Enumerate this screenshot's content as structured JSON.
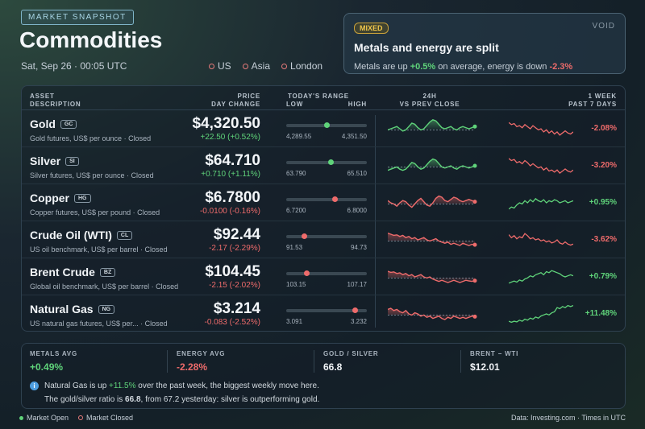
{
  "header": {
    "tag": "MARKET SNAPSHOT",
    "title": "Commodities",
    "datetime": "Sat, Sep 26 · 00:05 UTC",
    "markets": [
      "US",
      "Asia",
      "London"
    ]
  },
  "callout": {
    "badge": "MIXED",
    "brand": "VOID",
    "headline": "Metals and energy are split",
    "body_prefix": "Metals are up ",
    "metals_change": "+0.5%",
    "body_mid": " on average, energy is down ",
    "energy_change": "-2.3%"
  },
  "table": {
    "headers": {
      "asset": "ASSET",
      "description": "DESCRIPTION",
      "price": "PRICE",
      "day_change": "DAY CHANGE",
      "range": "TODAY'S RANGE",
      "low": "LOW",
      "high": "HIGH",
      "h24": "24H",
      "vs_prev": "VS PREV CLOSE",
      "week": "1 WEEK",
      "past7": "PAST 7 DAYS"
    },
    "rows": [
      {
        "name": "Gold",
        "code": "GC",
        "desc": "Gold futures, US$ per ounce · Closed",
        "price": "$4,320.50",
        "change": "+22.50 (+0.52%)",
        "dir": "up",
        "low": "4,289.55",
        "high": "4,351.50",
        "range_pos": 0.5,
        "week": "-2.08%",
        "week_dir": "down",
        "spark24": [
          0.45,
          0.5,
          0.55,
          0.6,
          0.5,
          0.4,
          0.45,
          0.6,
          0.75,
          0.7,
          0.55,
          0.45,
          0.5,
          0.65,
          0.8,
          0.9,
          0.85,
          0.7,
          0.55,
          0.5,
          0.55,
          0.6,
          0.5,
          0.45,
          0.55,
          0.6,
          0.55,
          0.5,
          0.55,
          0.6
        ],
        "spark7": [
          0.8,
          0.7,
          0.75,
          0.6,
          0.65,
          0.55,
          0.7,
          0.6,
          0.5,
          0.65,
          0.55,
          0.45,
          0.5,
          0.35,
          0.45,
          0.3,
          0.4,
          0.25,
          0.35,
          0.2,
          0.3,
          0.4,
          0.3,
          0.25,
          0.35
        ]
      },
      {
        "name": "Silver",
        "code": "SI",
        "desc": "Silver futures, US$ per ounce · Closed",
        "price": "$64.710",
        "change": "+0.710 (+1.11%)",
        "dir": "up",
        "low": "63.790",
        "high": "65.510",
        "range_pos": 0.55,
        "week": "-3.20%",
        "week_dir": "down",
        "spark24": [
          0.3,
          0.35,
          0.4,
          0.45,
          0.35,
          0.3,
          0.35,
          0.5,
          0.65,
          0.6,
          0.45,
          0.35,
          0.4,
          0.55,
          0.7,
          0.8,
          0.75,
          0.6,
          0.45,
          0.4,
          0.45,
          0.5,
          0.4,
          0.35,
          0.45,
          0.5,
          0.45,
          0.4,
          0.45,
          0.5
        ],
        "spark7": [
          0.85,
          0.75,
          0.8,
          0.65,
          0.7,
          0.6,
          0.75,
          0.65,
          0.5,
          0.6,
          0.5,
          0.4,
          0.45,
          0.3,
          0.4,
          0.25,
          0.3,
          0.2,
          0.3,
          0.15,
          0.25,
          0.35,
          0.25,
          0.2,
          0.3
        ]
      },
      {
        "name": "Copper",
        "code": "HG",
        "desc": "Copper futures, US$ per pound · Closed",
        "price": "$6.7800",
        "change": "-0.0100 (-0.16%)",
        "dir": "down",
        "low": "6.7200",
        "high": "6.8000",
        "range_pos": 0.6,
        "week": "+0.95%",
        "week_dir": "up",
        "spark24": [
          0.6,
          0.5,
          0.45,
          0.35,
          0.5,
          0.6,
          0.55,
          0.4,
          0.3,
          0.45,
          0.6,
          0.7,
          0.55,
          0.4,
          0.35,
          0.5,
          0.7,
          0.8,
          0.75,
          0.6,
          0.55,
          0.65,
          0.75,
          0.7,
          0.6,
          0.55,
          0.6,
          0.65,
          0.6,
          0.55
        ],
        "spark7": [
          0.2,
          0.3,
          0.25,
          0.4,
          0.5,
          0.45,
          0.6,
          0.5,
          0.65,
          0.55,
          0.7,
          0.6,
          0.55,
          0.65,
          0.5,
          0.6,
          0.55,
          0.65,
          0.6,
          0.5,
          0.55,
          0.6,
          0.5,
          0.55,
          0.6
        ]
      },
      {
        "name": "Crude Oil (WTI)",
        "code": "CL",
        "desc": "US oil benchmark, US$ per barrel · Closed",
        "price": "$92.44",
        "change": "-2.17 (-2.29%)",
        "dir": "down",
        "low": "91.53",
        "high": "94.73",
        "range_pos": 0.22,
        "week": "-3.62%",
        "week_dir": "down",
        "spark24": [
          0.8,
          0.75,
          0.7,
          0.72,
          0.65,
          0.7,
          0.6,
          0.65,
          0.55,
          0.6,
          0.5,
          0.55,
          0.6,
          0.5,
          0.45,
          0.5,
          0.55,
          0.45,
          0.4,
          0.35,
          0.4,
          0.3,
          0.35,
          0.3,
          0.25,
          0.35,
          0.3,
          0.25,
          0.3,
          0.28
        ],
        "spark7": [
          0.75,
          0.6,
          0.7,
          0.55,
          0.65,
          0.6,
          0.8,
          0.7,
          0.55,
          0.6,
          0.5,
          0.55,
          0.45,
          0.5,
          0.4,
          0.45,
          0.35,
          0.4,
          0.5,
          0.35,
          0.3,
          0.4,
          0.3,
          0.25,
          0.3
        ]
      },
      {
        "name": "Brent Crude",
        "code": "BZ",
        "desc": "Global oil benchmark, US$ per barrel · Closed",
        "price": "$104.45",
        "change": "-2.15 (-2.02%)",
        "dir": "down",
        "low": "103.15",
        "high": "107.17",
        "range_pos": 0.25,
        "week": "+0.79%",
        "week_dir": "up",
        "spark24": [
          0.75,
          0.7,
          0.72,
          0.65,
          0.68,
          0.6,
          0.65,
          0.55,
          0.6,
          0.5,
          0.55,
          0.6,
          0.5,
          0.45,
          0.5,
          0.4,
          0.35,
          0.3,
          0.35,
          0.3,
          0.25,
          0.3,
          0.35,
          0.3,
          0.25,
          0.3,
          0.35,
          0.32,
          0.3,
          0.33
        ],
        "spark7": [
          0.2,
          0.25,
          0.3,
          0.25,
          0.35,
          0.3,
          0.4,
          0.45,
          0.55,
          0.5,
          0.6,
          0.65,
          0.7,
          0.6,
          0.75,
          0.7,
          0.8,
          0.75,
          0.7,
          0.65,
          0.55,
          0.5,
          0.55,
          0.6,
          0.55
        ]
      },
      {
        "name": "Natural Gas",
        "code": "NG",
        "desc": "US natural gas futures, US$ per...  · Closed",
        "price": "$3.214",
        "change": "-0.083 (-2.52%)",
        "dir": "down",
        "low": "3.091",
        "high": "3.232",
        "range_pos": 0.85,
        "week": "+11.48%",
        "week_dir": "up",
        "spark24": [
          0.7,
          0.75,
          0.65,
          0.7,
          0.6,
          0.55,
          0.65,
          0.5,
          0.45,
          0.55,
          0.5,
          0.4,
          0.45,
          0.35,
          0.4,
          0.3,
          0.35,
          0.4,
          0.3,
          0.25,
          0.35,
          0.3,
          0.4,
          0.35,
          0.3,
          0.35,
          0.3,
          0.35,
          0.4,
          0.38
        ],
        "spark7": [
          0.15,
          0.1,
          0.15,
          0.12,
          0.2,
          0.15,
          0.25,
          0.2,
          0.3,
          0.25,
          0.35,
          0.3,
          0.4,
          0.45,
          0.5,
          0.45,
          0.55,
          0.6,
          0.8,
          0.75,
          0.85,
          0.8,
          0.9,
          0.85,
          0.9
        ]
      }
    ]
  },
  "summary": {
    "stats": [
      {
        "label": "METALS AVG",
        "value": "+0.49%",
        "tone": "pos"
      },
      {
        "label": "ENERGY AVG",
        "value": "-2.28%",
        "tone": "neg"
      },
      {
        "label": "GOLD / SILVER",
        "value": "66.8",
        "tone": "neutral"
      },
      {
        "label": "BRENT − WTI",
        "value": "$12.01",
        "tone": "neutral"
      }
    ],
    "note1_prefix": "Natural Gas is up ",
    "note1_value": "+11.5%",
    "note1_suffix": " over the past week, the biggest weekly move here.",
    "note2_prefix": "The gold/silver ratio is ",
    "note2_value": "66.8",
    "note2_suffix": ", from 67.2 yesterday: silver is outperforming gold."
  },
  "footer": {
    "open": "Market Open",
    "closed": "Market Closed",
    "source": "Data: Investing.com · Times in UTC"
  },
  "colors": {
    "up": "#5fd37a",
    "down": "#ee6b6b",
    "accent": "#f2c84b"
  }
}
